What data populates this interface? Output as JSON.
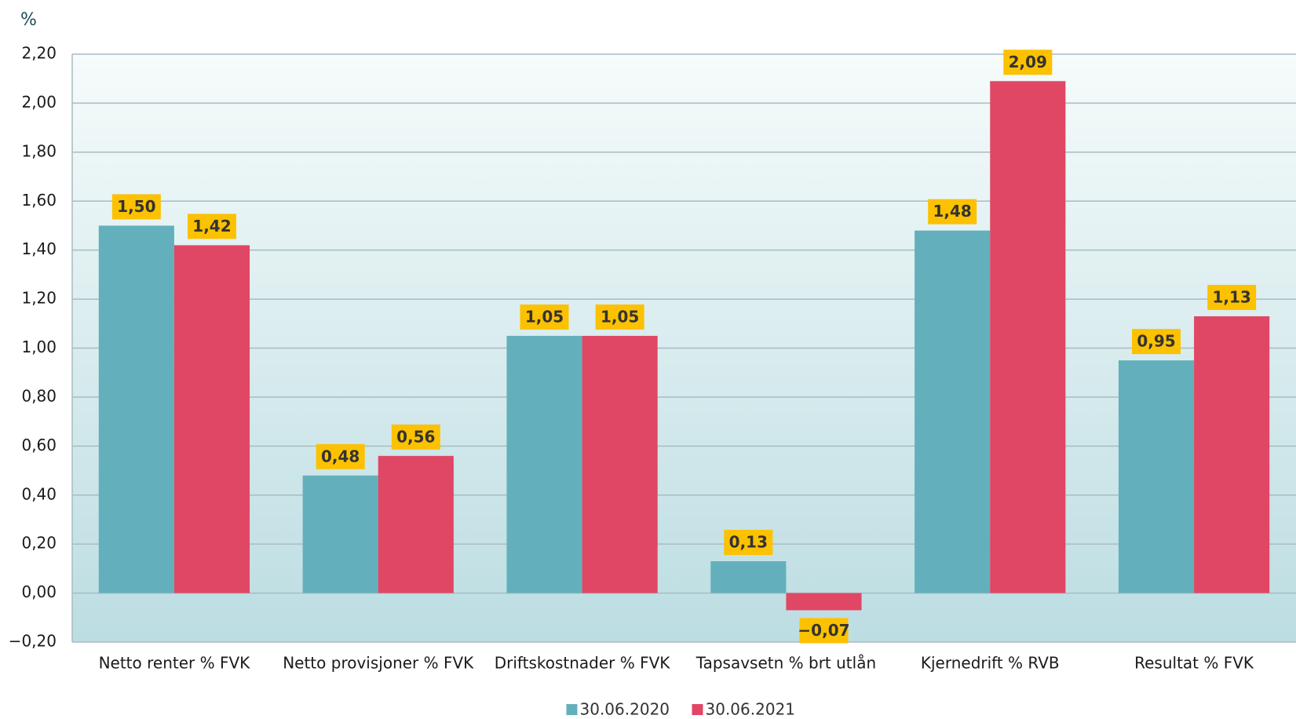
{
  "chart_data": {
    "type": "bar",
    "y_label": "%",
    "categories": [
      "Netto renter % FVK",
      "Netto provisjoner % FVK",
      "Driftskostnader % FVK",
      "Tapsavsetn % brt utlån",
      "Kjernedrift % RVB",
      "Resultat % FVK"
    ],
    "series": [
      {
        "name": "30.06.2020",
        "color": "#63b0bc",
        "values": [
          1.5,
          0.48,
          1.05,
          0.13,
          1.48,
          0.95
        ],
        "value_labels": [
          "1,50",
          "0,48",
          "1,05",
          "0,13",
          "1,48",
          "0,95"
        ]
      },
      {
        "name": "30.06.2021",
        "color": "#e04764",
        "values": [
          1.42,
          0.56,
          1.05,
          -0.07,
          2.09,
          1.13
        ],
        "value_labels": [
          "1,42",
          "0,56",
          "1,05",
          "−0,07",
          "2,09",
          "1,13"
        ]
      }
    ],
    "ylim": [
      -0.2,
      2.2
    ],
    "yticks": [
      {
        "value": -0.2,
        "label": "−0,20"
      },
      {
        "value": 0,
        "label": "0,00"
      },
      {
        "value": 0.2,
        "label": "0,20"
      },
      {
        "value": 0.4,
        "label": "0,40"
      },
      {
        "value": 0.6,
        "label": "0,60"
      },
      {
        "value": 0.8,
        "label": "0,80"
      },
      {
        "value": 1.0,
        "label": "1,00"
      },
      {
        "value": 1.2,
        "label": "1,20"
      },
      {
        "value": 1.4,
        "label": "1,40"
      },
      {
        "value": 1.6,
        "label": "1,60"
      },
      {
        "value": 1.8,
        "label": "1,80"
      },
      {
        "value": 2.0,
        "label": "2,00"
      },
      {
        "value": 2.2,
        "label": "2,20"
      }
    ],
    "grid": true,
    "legend": "bottom",
    "label_box_color": "#fcc100"
  }
}
